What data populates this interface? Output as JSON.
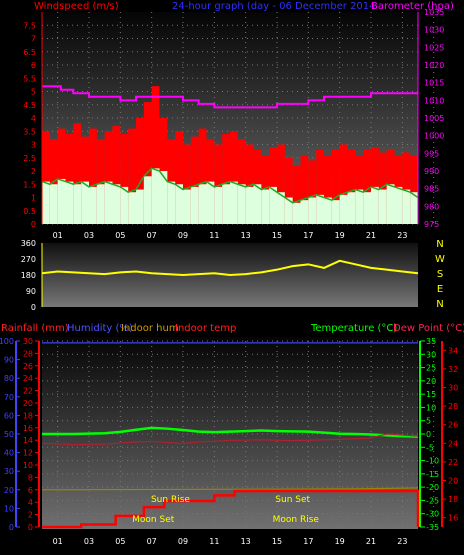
{
  "chart_data": [
    {
      "type": "line",
      "title": "24-hour graph (day - 06 December 2014",
      "left_axis": {
        "label": "Windspeed (m/s)",
        "range": [
          0,
          8
        ],
        "ticks": [
          "0",
          "0.5",
          "1",
          "1.5",
          "2",
          "2.5",
          "3",
          "3.5",
          "4",
          "4.5",
          "5",
          "5.5",
          "6",
          "6.5",
          "7",
          "7.5"
        ],
        "color": "#ff0000"
      },
      "right_axis": {
        "label": "Barometer (hpa)",
        "range": [
          975,
          1035
        ],
        "ticks": [
          "975",
          "980",
          "985",
          "990",
          "995",
          "1000",
          "1005",
          "1010",
          "1015",
          "1020",
          "1025",
          "1030",
          "1035"
        ],
        "color": "#ff00ff"
      },
      "x_ticks": [
        "01",
        "03",
        "05",
        "07",
        "09",
        "11",
        "13",
        "15",
        "17",
        "19",
        "21",
        "23"
      ],
      "hour_range": [
        0,
        24
      ],
      "series": [
        {
          "role": "gust",
          "color": "#ff0000",
          "x": [
            0,
            0.5,
            1,
            1.5,
            2,
            2.5,
            3,
            3.5,
            4,
            4.5,
            5,
            5.5,
            6,
            6.5,
            7,
            7.5,
            8,
            8.5,
            9,
            9.5,
            10,
            10.5,
            11,
            11.5,
            12,
            12.5,
            13,
            13.5,
            14,
            14.5,
            15,
            15.5,
            16,
            16.5,
            17,
            17.5,
            18,
            18.5,
            19,
            19.5,
            20,
            20.5,
            21,
            21.5,
            22,
            22.5,
            23,
            23.5,
            24
          ],
          "values": [
            3.5,
            3.2,
            3.6,
            3.4,
            3.8,
            3.3,
            3.6,
            3.2,
            3.5,
            3.7,
            3.4,
            3.6,
            4.0,
            4.6,
            5.2,
            4.0,
            3.2,
            3.5,
            3.0,
            3.3,
            3.6,
            3.2,
            3.0,
            3.4,
            3.5,
            3.2,
            3.0,
            2.8,
            2.6,
            2.9,
            3.0,
            2.5,
            2.2,
            2.6,
            2.4,
            2.8,
            2.6,
            2.8,
            3.0,
            2.8,
            2.6,
            2.8,
            2.9,
            2.7,
            2.8,
            2.6,
            2.7,
            2.6,
            2.2
          ]
        },
        {
          "role": "average",
          "color": "#ddffdd",
          "x": [
            0,
            0.5,
            1,
            1.5,
            2,
            2.5,
            3,
            3.5,
            4,
            4.5,
            5,
            5.5,
            6,
            6.5,
            7,
            7.5,
            8,
            8.5,
            9,
            9.5,
            10,
            10.5,
            11,
            11.5,
            12,
            12.5,
            13,
            13.5,
            14,
            14.5,
            15,
            15.5,
            16,
            16.5,
            17,
            17.5,
            18,
            18.5,
            19,
            19.5,
            20,
            20.5,
            21,
            21.5,
            22,
            22.5,
            23,
            23.5,
            24
          ],
          "values": [
            1.6,
            1.5,
            1.7,
            1.6,
            1.5,
            1.6,
            1.4,
            1.5,
            1.6,
            1.5,
            1.4,
            1.2,
            1.3,
            1.8,
            2.1,
            2.0,
            1.6,
            1.5,
            1.3,
            1.4,
            1.5,
            1.6,
            1.4,
            1.5,
            1.6,
            1.5,
            1.4,
            1.5,
            1.3,
            1.4,
            1.2,
            1.0,
            0.8,
            0.9,
            1.0,
            1.1,
            1.0,
            0.9,
            1.1,
            1.2,
            1.3,
            1.2,
            1.4,
            1.3,
            1.5,
            1.4,
            1.3,
            1.2,
            1.0
          ]
        },
        {
          "role": "barometer",
          "color": "#ff00ff",
          "x": [
            0,
            1.2,
            1.2,
            2,
            2,
            3,
            3,
            4,
            4,
            5,
            5,
            6,
            6,
            9,
            9,
            10,
            10,
            11,
            11,
            12,
            12,
            13,
            13,
            14,
            14,
            15,
            15,
            16,
            16,
            17,
            17,
            18,
            18,
            19,
            19,
            20,
            20,
            21,
            21,
            22,
            22,
            24
          ],
          "values": [
            1014,
            1014,
            1013,
            1013,
            1012,
            1012,
            1011,
            1011,
            1011,
            1011,
            1010,
            1010,
            1011,
            1011,
            1010,
            1010,
            1009,
            1009,
            1008,
            1008,
            1008,
            1008,
            1008,
            1008,
            1008,
            1008,
            1009,
            1009,
            1009,
            1009,
            1010,
            1010,
            1011,
            1011,
            1011,
            1011,
            1011,
            1011,
            1012,
            1012,
            1012,
            1012
          ]
        }
      ]
    },
    {
      "type": "line",
      "left_axis": {
        "ticks": [
          "0",
          "90",
          "180",
          "270",
          "360"
        ],
        "range": [
          0,
          360
        ]
      },
      "right_axis": {
        "ticks": [
          "N",
          "W",
          "S",
          "E",
          "N"
        ]
      },
      "series": [
        {
          "role": "wind-direction",
          "color": "#ffff00",
          "x": [
            0,
            1,
            2,
            3,
            4,
            5,
            6,
            7,
            8,
            9,
            10,
            11,
            12,
            13,
            14,
            15,
            16,
            17,
            18,
            19,
            20,
            21,
            22,
            23,
            24
          ],
          "values": [
            190,
            200,
            195,
            190,
            185,
            195,
            200,
            190,
            185,
            180,
            185,
            190,
            180,
            185,
            195,
            210,
            230,
            240,
            220,
            260,
            240,
            220,
            210,
            200,
            190
          ]
        }
      ]
    },
    {
      "type": "line",
      "labels": {
        "rainfall": "Rainfall (mm)",
        "humidity": "Humidity (%)",
        "indoor_hum": "Indoor hum",
        "indoor_temp": "Indoor temp",
        "temperature": "Temperature (°C)",
        "dew_point": "Dew Point (°C)"
      },
      "axes": {
        "humidity": {
          "ticks": [
            "0",
            "10",
            "20",
            "30",
            "40",
            "50",
            "60",
            "70",
            "80",
            "90",
            "100"
          ],
          "range": [
            0,
            100
          ],
          "color": "#4444ff"
        },
        "rainfall": {
          "ticks": [
            "0",
            "2",
            "4",
            "6",
            "8",
            "10",
            "12",
            "14",
            "16",
            "18",
            "20",
            "22",
            "24",
            "26",
            "28",
            "30"
          ],
          "range": [
            0,
            30
          ],
          "color": "#ff0000"
        },
        "temperature": {
          "ticks": [
            "-35",
            "-30",
            "-25",
            "-20",
            "-15",
            "-10",
            "-5",
            "0",
            "5",
            "10",
            "15",
            "20",
            "25",
            "30",
            "35"
          ],
          "range": [
            -35,
            35
          ],
          "color": "#00ff00"
        },
        "indoor_temp": {
          "ticks": [
            "16",
            "18",
            "20",
            "22",
            "24",
            "26",
            "28",
            "30",
            "32",
            "34"
          ],
          "range": [
            15,
            35
          ],
          "color": "#ff0000"
        }
      },
      "annotations": [
        {
          "text": "Sun Rise",
          "hour": 8.2
        },
        {
          "text": "Moon Set",
          "hour": 7.1
        },
        {
          "text": "Sun Set",
          "hour": 16.0
        },
        {
          "text": "Moon Rise",
          "hour": 16.2
        }
      ],
      "series": [
        {
          "role": "humidity",
          "color": "#4040ff",
          "x": [
            0,
            24
          ],
          "values": [
            99,
            99
          ]
        },
        {
          "role": "temperature",
          "color": "#00ff00",
          "x": [
            0,
            2,
            4,
            5,
            6,
            7,
            8,
            9,
            10,
            11,
            12,
            13,
            14,
            15,
            16,
            17,
            18,
            19,
            20,
            21,
            22,
            23,
            24
          ],
          "values": [
            0,
            0,
            0.3,
            0.8,
            1.6,
            2.3,
            2.0,
            1.5,
            0.9,
            0.7,
            0.9,
            1.1,
            1.3,
            1.1,
            1.0,
            0.9,
            0.5,
            0.1,
            0,
            -0.2,
            -0.5,
            -0.8,
            -1.0
          ]
        },
        {
          "role": "dew-point",
          "color": "#aa2233",
          "x": [
            0,
            2,
            4,
            6,
            7,
            8,
            9,
            10,
            11,
            12,
            14,
            16,
            18,
            20,
            21,
            22,
            23,
            24
          ],
          "values": [
            -3.5,
            -4,
            -3.8,
            -3,
            -2.8,
            -3.2,
            -3.5,
            -3,
            -2.7,
            -2.4,
            -2.2,
            -2.5,
            -2.2,
            -1.8,
            -1.5,
            0,
            -0.4,
            -0.8
          ]
        },
        {
          "role": "indoor-hum",
          "color": "#998800",
          "x": [
            0,
            20,
            24
          ],
          "values": [
            20,
            20.5,
            21
          ]
        },
        {
          "role": "rainfall",
          "color": "#ff0000",
          "x": [
            0,
            2.5,
            2.5,
            4.7,
            4.7,
            6.5,
            6.5,
            7.8,
            7.8,
            11.0,
            11.0,
            12.3,
            12.3,
            24,
            24
          ],
          "values": [
            0,
            0,
            0.4,
            0.4,
            1.8,
            1.8,
            3.2,
            3.2,
            4.2,
            4.2,
            5.1,
            5.1,
            5.8,
            5.8,
            0
          ]
        }
      ]
    }
  ]
}
